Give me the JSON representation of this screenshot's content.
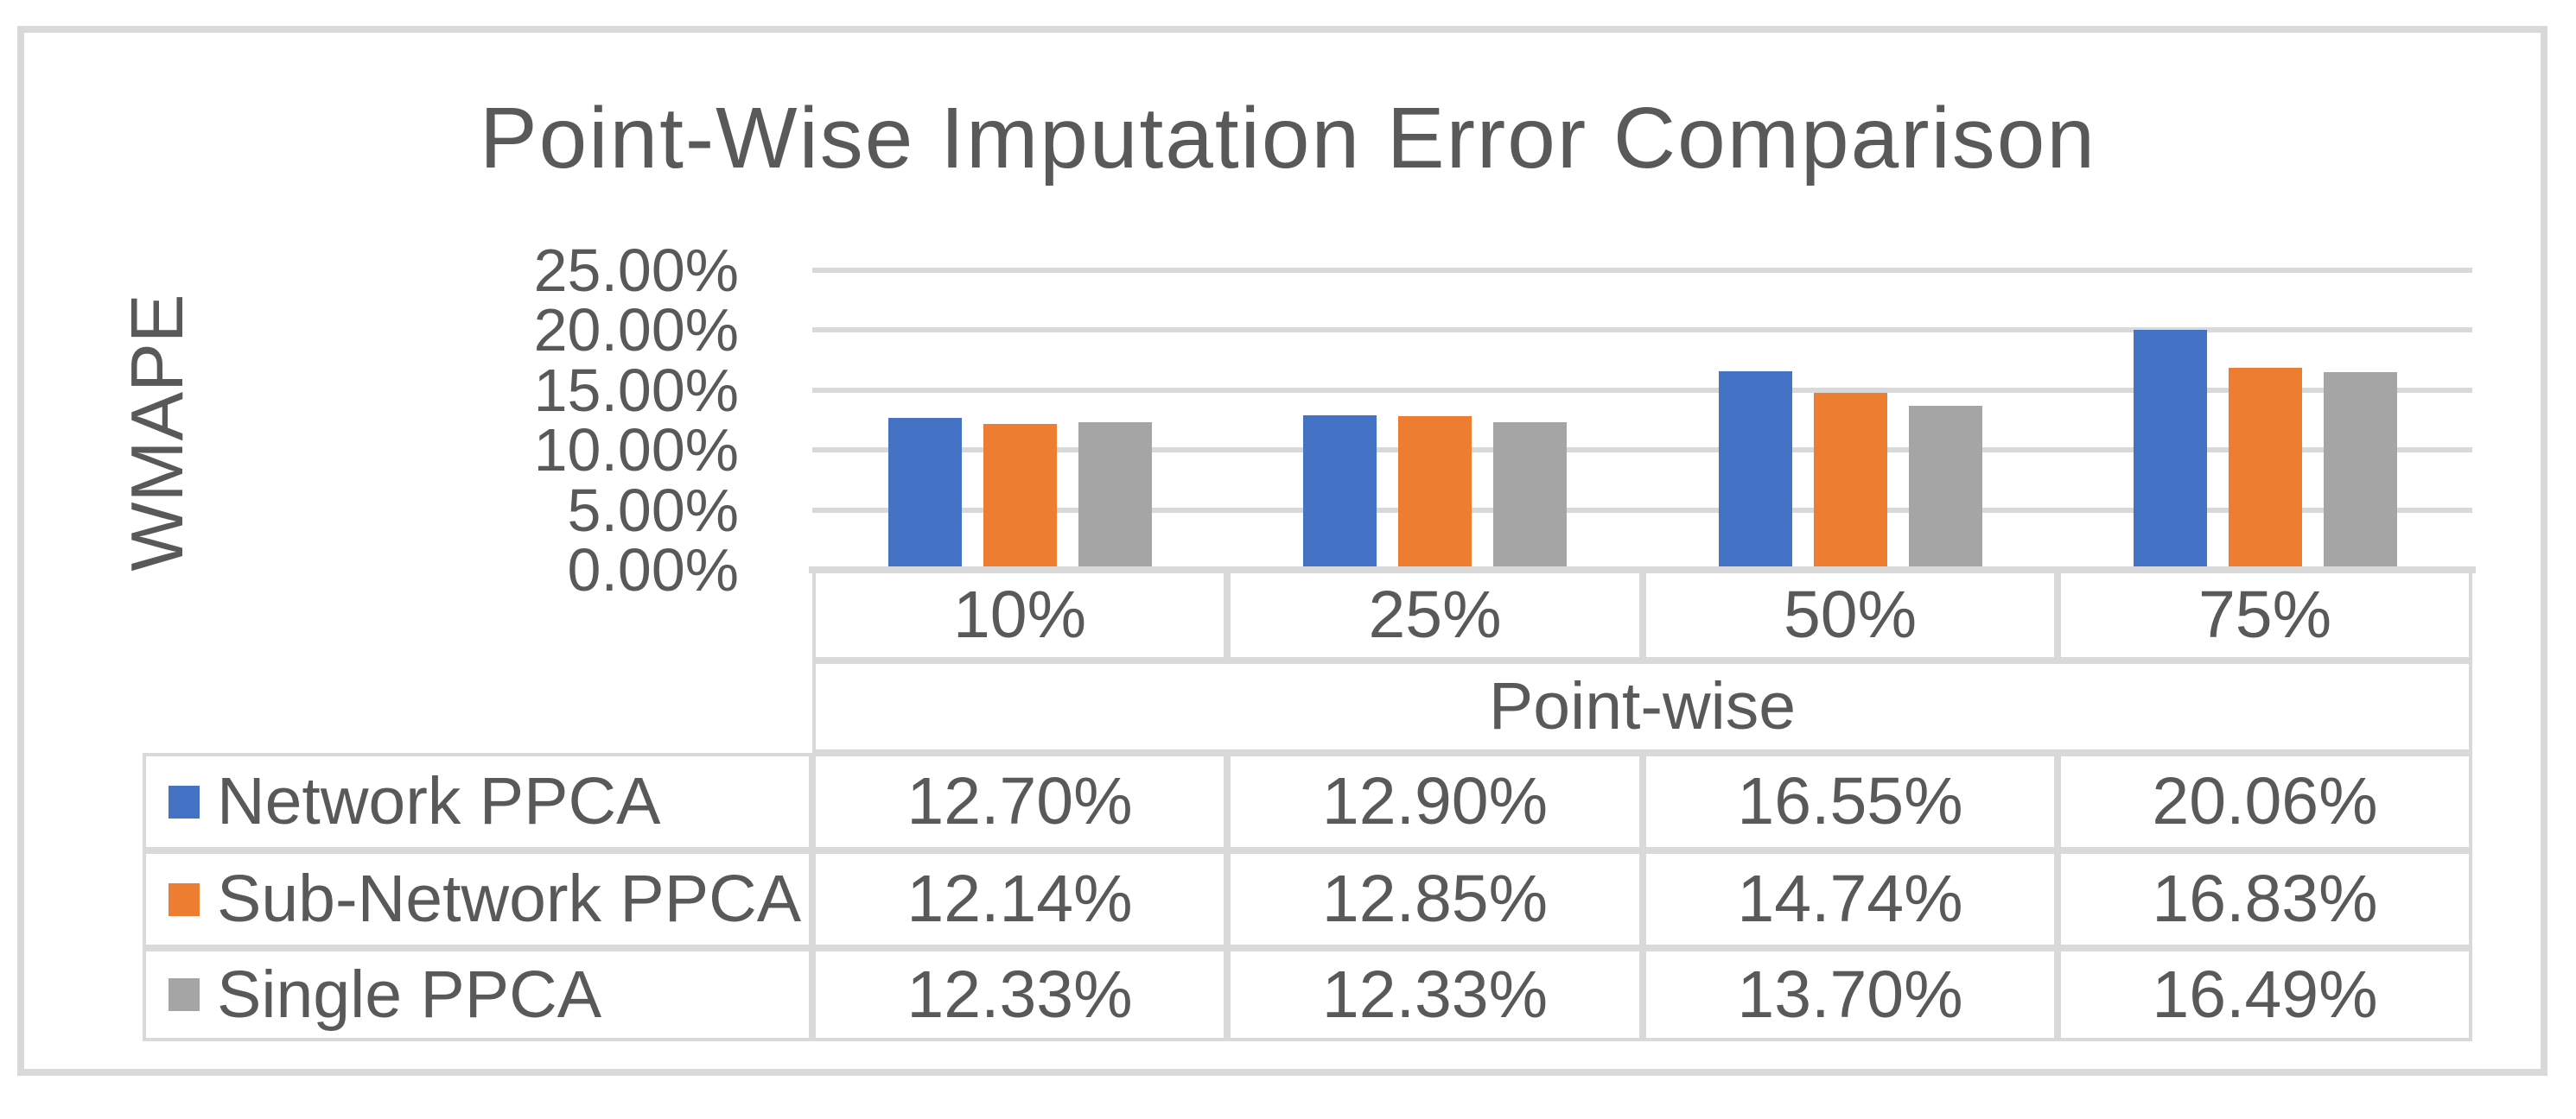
{
  "title": "Point-Wise Imputation Error Comparison",
  "y_axis": {
    "title": "WMAPE",
    "ticks": [
      "25.00%",
      "20.00%",
      "15.00%",
      "10.00%",
      "5.00%",
      "0.00%"
    ]
  },
  "x_axis": {
    "categories": [
      "10%",
      "25%",
      "50%",
      "75%"
    ],
    "group_label": "Point-wise"
  },
  "colors": {
    "text": "#595959",
    "gridline": "#D9D9D9",
    "table_border": "#D9D9D9",
    "series_blue": "#4472C4",
    "series_orange": "#ED7D31",
    "series_gray": "#A5A5A5"
  },
  "chart_data": {
    "type": "bar",
    "title": "Point-Wise Imputation Error Comparison",
    "ylabel": "WMAPE",
    "xlabel": "Point-wise",
    "categories": [
      "10%",
      "25%",
      "50%",
      "75%"
    ],
    "category_group_label": "Point-wise",
    "y_ticks": [
      "25.00%",
      "20.00%",
      "15.00%",
      "10.00%",
      "5.00%",
      "0.00%"
    ],
    "ylim": [
      0,
      25
    ],
    "grid": true,
    "legend_position": "data-table-left",
    "data_table_shown": true,
    "series": [
      {
        "name": "Network PPCA",
        "color": "#4472C4",
        "values_pct": [
          12.7,
          12.9,
          16.55,
          20.06
        ],
        "labels": [
          "12.70%",
          "12.90%",
          "16.55%",
          "20.06%"
        ]
      },
      {
        "name": "Sub-Network PPCA",
        "color": "#ED7D31",
        "values_pct": [
          12.14,
          12.85,
          14.74,
          16.83
        ],
        "labels": [
          "12.14%",
          "12.85%",
          "14.74%",
          "16.83%"
        ]
      },
      {
        "name": "Single PPCA",
        "color": "#A5A5A5",
        "values_pct": [
          12.33,
          12.33,
          13.7,
          16.49
        ],
        "labels": [
          "12.33%",
          "12.33%",
          "13.70%",
          "16.49%"
        ]
      }
    ]
  }
}
